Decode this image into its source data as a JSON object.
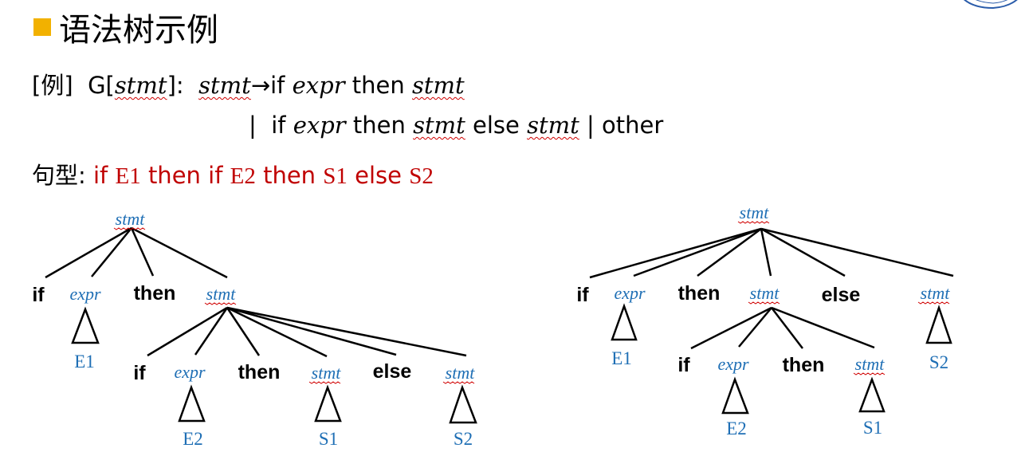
{
  "title": "语法树示例",
  "example": {
    "tag": "[例]",
    "grammar_prefix": "G[",
    "grammar_nt": "stmt",
    "grammar_suffix": "]:",
    "lhs": "stmt",
    "arrow": "→",
    "if": "if",
    "expr": "expr",
    "then": "then",
    "stmt": "stmt",
    "bar": "|",
    "else": "else",
    "other": "other"
  },
  "sentence": {
    "label": "句型:",
    "if1": "if",
    "e1": "E1",
    "then1": "then",
    "if2": "if",
    "e2": "E2",
    "then2": "then",
    "s1": "S1",
    "else": "else",
    "s2": "S2"
  },
  "tree1": {
    "root": "stmt",
    "children": [
      "if",
      "expr",
      "then",
      "stmt"
    ],
    "expr_leaf": "E1",
    "inner_children": [
      "if",
      "expr",
      "then",
      "stmt",
      "else",
      "stmt"
    ],
    "inner_leaves": [
      "E2",
      "S1",
      "S2"
    ]
  },
  "tree2": {
    "root": "stmt",
    "children": [
      "if",
      "expr",
      "then",
      "stmt",
      "else",
      "stmt"
    ],
    "leaves": [
      "E1",
      "S2"
    ],
    "inner_children": [
      "if",
      "expr",
      "then",
      "stmt"
    ],
    "inner_leaves": [
      "E2",
      "S1"
    ]
  },
  "colors": {
    "bullet": "#f2b100",
    "highlight": "#c00000",
    "node": "#1f6fb5",
    "squiggle": "#d00000"
  }
}
